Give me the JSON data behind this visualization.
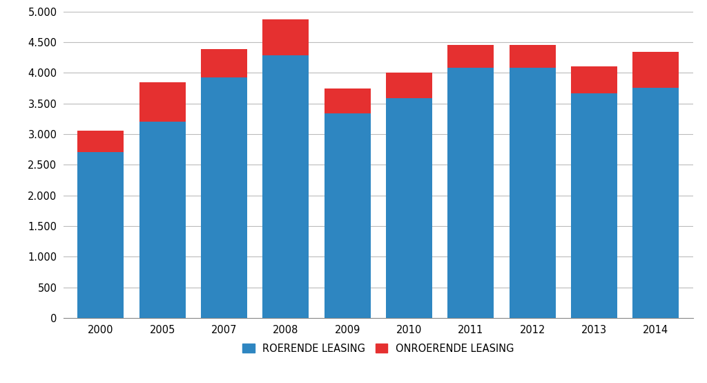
{
  "years": [
    "2000",
    "2005",
    "2007",
    "2008",
    "2009",
    "2010",
    "2011",
    "2012",
    "2013",
    "2014"
  ],
  "roerende": [
    2700,
    3200,
    3920,
    4280,
    3340,
    3580,
    4080,
    4080,
    3660,
    3750
  ],
  "onroerende": [
    360,
    640,
    470,
    590,
    400,
    420,
    370,
    370,
    450,
    590
  ],
  "bar_color_roerende": "#2E86C1",
  "bar_color_onroerende": "#E53030",
  "legend_roerende": "ROERENDE LEASING",
  "legend_onroerende": "ONROERENDE LEASING",
  "ylim": [
    0,
    5000
  ],
  "yticks": [
    0,
    500,
    1000,
    1500,
    2000,
    2500,
    3000,
    3500,
    4000,
    4500,
    5000
  ],
  "ytick_labels": [
    "0",
    "500",
    "1.000",
    "1.500",
    "2.000",
    "2.500",
    "3.000",
    "3.500",
    "4.000",
    "4.500",
    "5.000"
  ],
  "background_color": "#FFFFFF",
  "grid_color": "#BBBBBB",
  "bar_width": 0.75
}
